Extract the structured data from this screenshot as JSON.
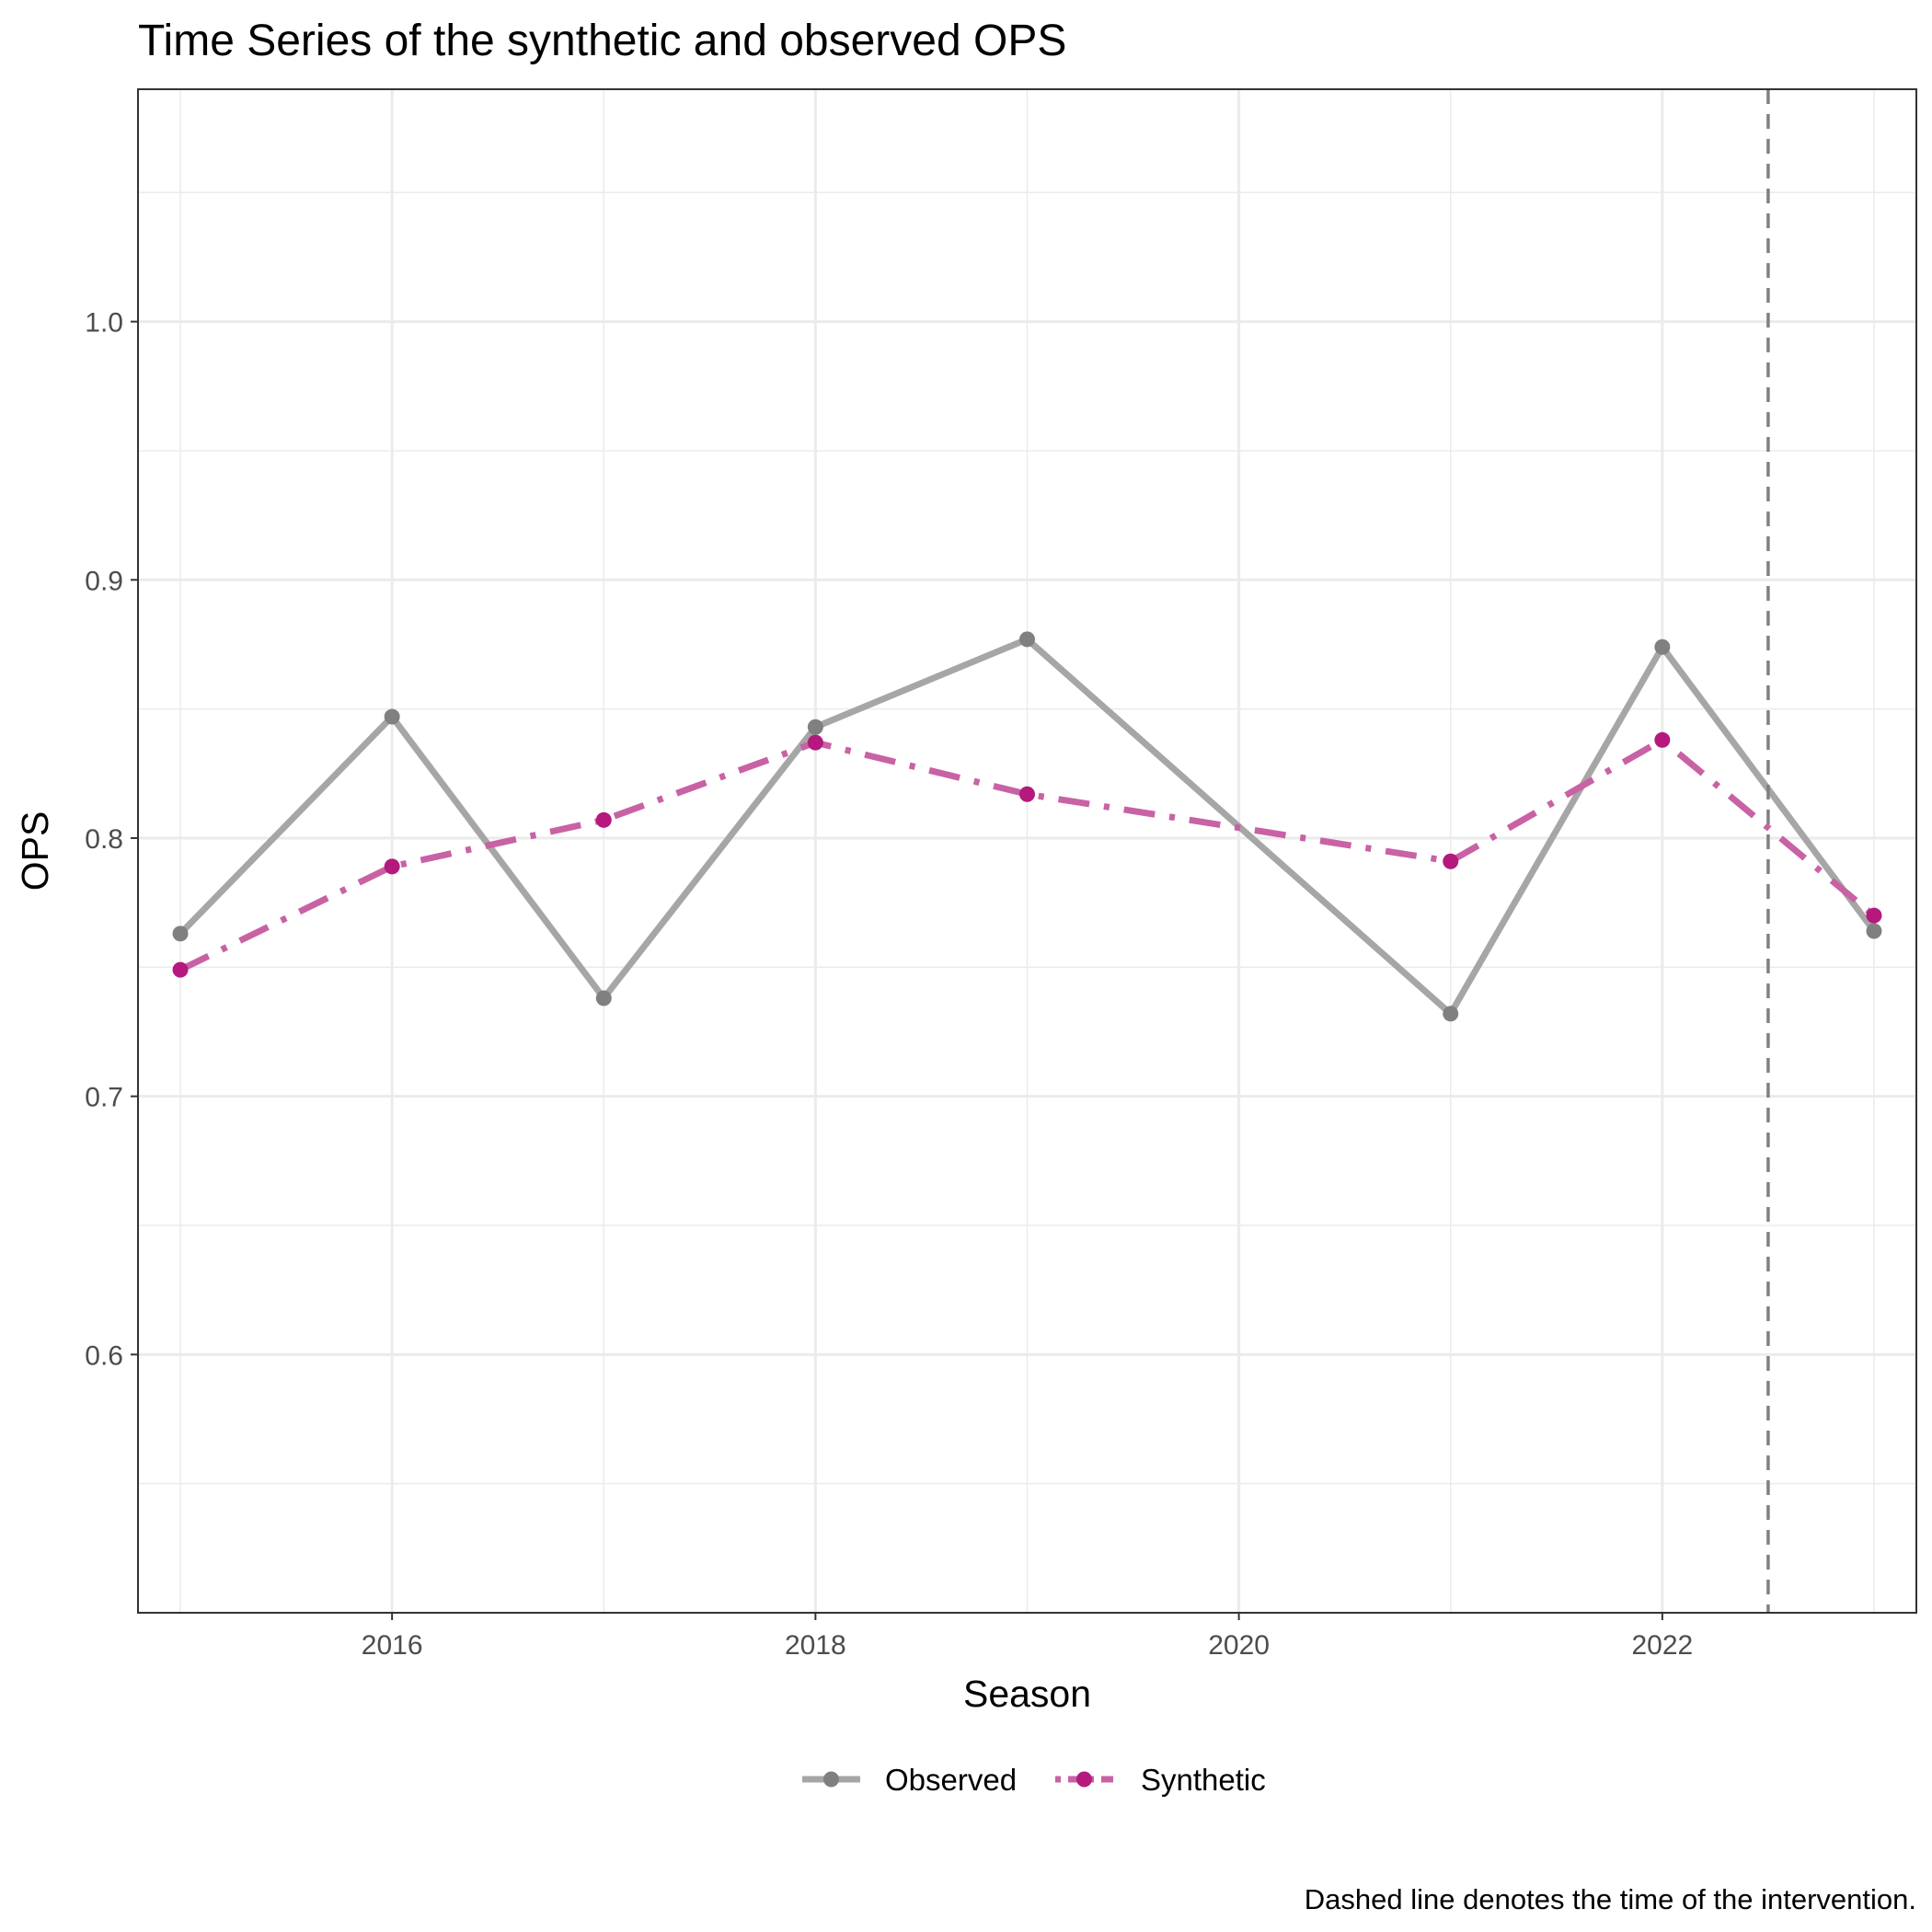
{
  "chart_data": {
    "type": "line",
    "title": "Time Series of the synthetic and observed OPS",
    "xlabel": "Season",
    "ylabel": "OPS",
    "caption": "Dashed line denotes the time of the intervention.",
    "x": [
      2015,
      2016,
      2017,
      2018,
      2019,
      2020,
      2021,
      2022,
      2023
    ],
    "xlim": [
      2014.8,
      2023.2
    ],
    "ylim": [
      0.5,
      1.09
    ],
    "x_ticks": [
      2016,
      2018,
      2020,
      2022
    ],
    "x_tick_labels": [
      "2016",
      "2018",
      "2020",
      "2022"
    ],
    "y_ticks": [
      0.6,
      0.7,
      0.8,
      0.9,
      1.0
    ],
    "y_tick_labels": [
      "0.6",
      "0.7",
      "0.8",
      "0.9",
      "1.0"
    ],
    "intervention_x": 2022.5,
    "grid": true,
    "legend_position": "bottom",
    "series": [
      {
        "name": "Observed",
        "color": "#808080",
        "line_color": "#a6a6a6",
        "linestyle": "solid",
        "x": [
          2015,
          2016,
          2017,
          2018,
          2019,
          2021,
          2022,
          2023
        ],
        "values": [
          0.763,
          0.847,
          0.738,
          0.843,
          0.877,
          0.732,
          0.874,
          0.764
        ]
      },
      {
        "name": "Synthetic",
        "color": "#b5197e",
        "line_color": "#c862a4",
        "linestyle": "dashdot",
        "x": [
          2015,
          2016,
          2017,
          2018,
          2019,
          2021,
          2022,
          2023
        ],
        "values": [
          0.749,
          0.789,
          0.807,
          0.837,
          0.817,
          0.791,
          0.838,
          0.77
        ]
      }
    ]
  }
}
